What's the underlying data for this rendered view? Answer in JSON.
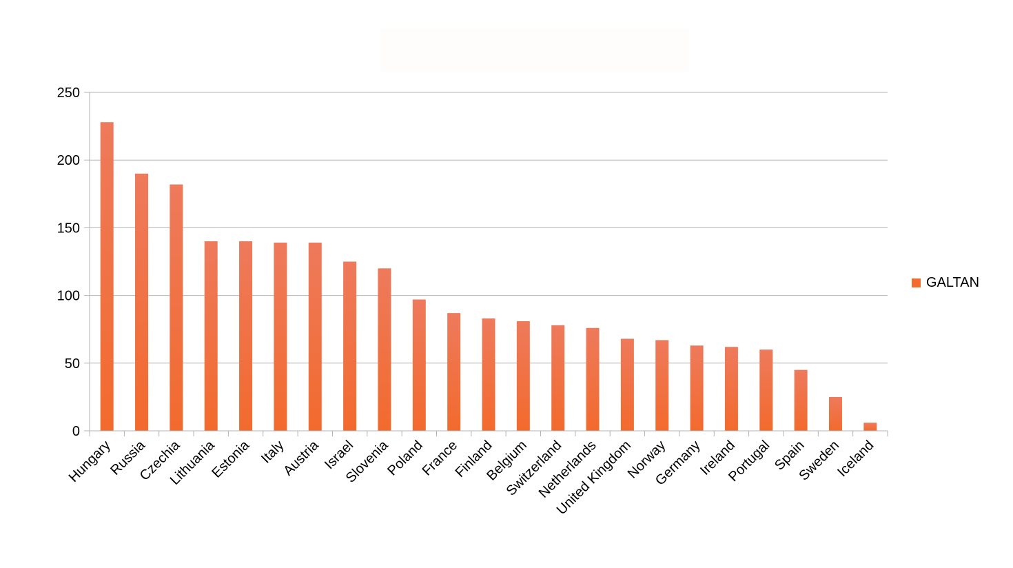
{
  "chart_data": {
    "type": "bar",
    "title": "",
    "xlabel": "",
    "ylabel": "",
    "ylim": [
      0,
      250
    ],
    "yticks": [
      0,
      50,
      100,
      150,
      200,
      250
    ],
    "grid": true,
    "legend_position": "right",
    "categories": [
      "Hungary",
      "Russia",
      "Czechia",
      "Lithuania",
      "Estonia",
      "Italy",
      "Austria",
      "Israel",
      "Slovenia",
      "Poland",
      "France",
      "Finland",
      "Belgium",
      "Switzerland",
      "Netherlands",
      "United Kingdom",
      "Norway",
      "Germany",
      "Ireland",
      "Portugal",
      "Spain",
      "Sweden",
      "Iceland"
    ],
    "series": [
      {
        "name": "GALTAN",
        "color": "#f26a2d",
        "color_top": "#ee7a5c",
        "values": [
          228,
          190,
          182,
          140,
          140,
          139,
          139,
          125,
          120,
          97,
          87,
          83,
          81,
          78,
          76,
          68,
          67,
          63,
          62,
          60,
          45,
          25,
          6
        ]
      }
    ]
  }
}
